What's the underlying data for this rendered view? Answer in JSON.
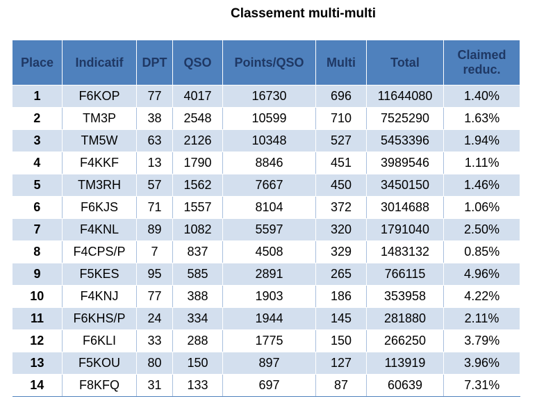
{
  "title": "Classement multi-multi",
  "columns": [
    "Place",
    "Indicatif",
    "DPT",
    "QSO",
    "Points/QSO",
    "Multi",
    "Total",
    "Claimed reduc."
  ],
  "rows": [
    [
      "1",
      "F6KOP",
      "77",
      "4017",
      "16730",
      "696",
      "11644080",
      "1.40%"
    ],
    [
      "2",
      "TM3P",
      "38",
      "2548",
      "10599",
      "710",
      "7525290",
      "1.63%"
    ],
    [
      "3",
      "TM5W",
      "63",
      "2126",
      "10348",
      "527",
      "5453396",
      "1.94%"
    ],
    [
      "4",
      "F4KKF",
      "13",
      "1790",
      "8846",
      "451",
      "3989546",
      "1.11%"
    ],
    [
      "5",
      "TM3RH",
      "57",
      "1562",
      "7667",
      "450",
      "3450150",
      "1.46%"
    ],
    [
      "6",
      "F6KJS",
      "71",
      "1557",
      "8104",
      "372",
      "3014688",
      "1.06%"
    ],
    [
      "7",
      "F4KNL",
      "89",
      "1082",
      "5597",
      "320",
      "1791040",
      "2.50%"
    ],
    [
      "8",
      "F4CPS/P",
      "7",
      "837",
      "4508",
      "329",
      "1483132",
      "0.85%"
    ],
    [
      "9",
      "F5KES",
      "95",
      "585",
      "2891",
      "265",
      "766115",
      "4.96%"
    ],
    [
      "10",
      "F4KNJ",
      "77",
      "388",
      "1903",
      "186",
      "353958",
      "4.22%"
    ],
    [
      "11",
      "F6KHS/P",
      "24",
      "334",
      "1944",
      "145",
      "281880",
      "2.11%"
    ],
    [
      "12",
      "F6KLI",
      "33",
      "288",
      "1775",
      "150",
      "266250",
      "3.79%"
    ],
    [
      "13",
      "F5KOU",
      "80",
      "150",
      "897",
      "127",
      "113919",
      "3.96%"
    ],
    [
      "14",
      "F8KFQ",
      "31",
      "133",
      "697",
      "87",
      "60639",
      "7.31%"
    ]
  ],
  "colors": {
    "header_bg": "#4f81bd",
    "header_text": "#1f3864",
    "band_row_bg": "#d3dfee"
  }
}
